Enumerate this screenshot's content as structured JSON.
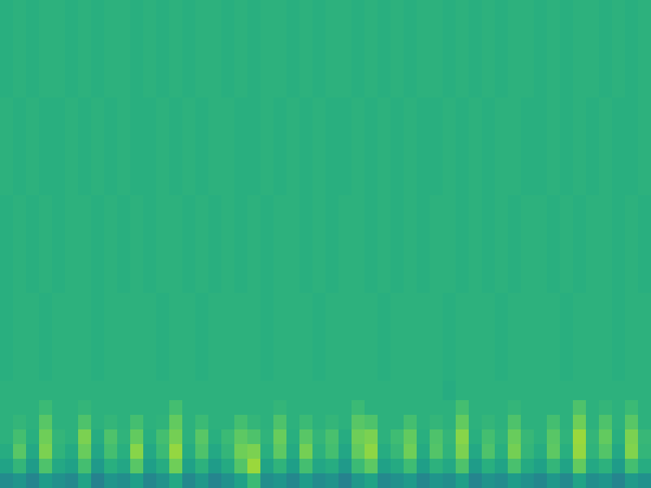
{
  "chart_data": {
    "type": "heatmap",
    "color": "Viridis",
    "tick_labels": false,
    "xlim": [
      -0.5,
      49.5
    ],
    "ylim": [
      0,
      100
    ],
    "zlim": [
      0,
      1
    ],
    "y": [
      0,
      3,
      6,
      9,
      12,
      15,
      18,
      22,
      40,
      60,
      80,
      100
    ],
    "cells": [
      [
        0.48,
        0.52,
        0.45,
        0.55,
        0.5,
        0.47,
        0.58,
        0.44,
        0.52,
        0.49,
        0.56,
        0.46,
        0.51,
        0.6,
        0.47,
        0.53,
        0.45,
        0.5,
        0.57,
        0.68,
        0.49,
        0.52,
        0.46,
        0.55,
        0.48,
        0.51,
        0.44,
        0.53,
        0.58,
        0.47,
        0.5,
        0.54,
        0.46,
        0.52,
        0.49,
        0.56,
        0.45,
        0.51,
        0.48,
        0.55,
        0.5,
        0.46,
        0.53,
        0.47,
        0.58,
        0.49,
        0.52,
        0.45,
        0.54,
        0.5
      ],
      [
        0.58,
        0.66,
        0.55,
        0.72,
        0.6,
        0.57,
        0.7,
        0.54,
        0.63,
        0.59,
        0.74,
        0.56,
        0.62,
        0.78,
        0.57,
        0.64,
        0.55,
        0.61,
        0.73,
        0.85,
        0.58,
        0.65,
        0.56,
        0.7,
        0.59,
        0.62,
        0.54,
        0.68,
        0.75,
        0.57,
        0.61,
        0.69,
        0.56,
        0.64,
        0.6,
        0.72,
        0.55,
        0.63,
        0.58,
        0.71,
        0.61,
        0.57,
        0.66,
        0.58,
        0.76,
        0.6,
        0.64,
        0.55,
        0.7,
        0.62
      ],
      [
        0.62,
        0.74,
        0.6,
        0.8,
        0.65,
        0.61,
        0.77,
        0.59,
        0.7,
        0.63,
        0.82,
        0.6,
        0.68,
        0.84,
        0.62,
        0.72,
        0.6,
        0.66,
        0.78,
        0.8,
        0.63,
        0.75,
        0.61,
        0.79,
        0.64,
        0.7,
        0.59,
        0.76,
        0.83,
        0.62,
        0.67,
        0.78,
        0.61,
        0.73,
        0.65,
        0.8,
        0.6,
        0.72,
        0.63,
        0.79,
        0.66,
        0.62,
        0.75,
        0.63,
        0.84,
        0.65,
        0.73,
        0.6,
        0.81,
        0.66
      ],
      [
        0.64,
        0.7,
        0.63,
        0.78,
        0.66,
        0.64,
        0.8,
        0.62,
        0.72,
        0.65,
        0.76,
        0.63,
        0.7,
        0.79,
        0.64,
        0.74,
        0.63,
        0.68,
        0.75,
        0.72,
        0.65,
        0.77,
        0.63,
        0.74,
        0.66,
        0.71,
        0.62,
        0.78,
        0.8,
        0.64,
        0.69,
        0.76,
        0.63,
        0.72,
        0.66,
        0.82,
        0.63,
        0.7,
        0.65,
        0.77,
        0.67,
        0.64,
        0.74,
        0.65,
        0.85,
        0.66,
        0.76,
        0.63,
        0.8,
        0.67
      ],
      [
        0.64,
        0.66,
        0.64,
        0.74,
        0.64,
        0.64,
        0.72,
        0.64,
        0.66,
        0.64,
        0.7,
        0.64,
        0.65,
        0.76,
        0.64,
        0.68,
        0.64,
        0.64,
        0.7,
        0.66,
        0.64,
        0.72,
        0.64,
        0.68,
        0.64,
        0.66,
        0.64,
        0.74,
        0.72,
        0.64,
        0.64,
        0.7,
        0.64,
        0.66,
        0.64,
        0.76,
        0.64,
        0.66,
        0.64,
        0.72,
        0.64,
        0.64,
        0.7,
        0.64,
        0.78,
        0.64,
        0.72,
        0.64,
        0.74,
        0.64
      ],
      [
        0.64,
        0.64,
        0.64,
        0.68,
        0.64,
        0.64,
        0.66,
        0.64,
        0.64,
        0.64,
        0.64,
        0.64,
        0.64,
        0.7,
        0.64,
        0.64,
        0.64,
        0.64,
        0.64,
        0.64,
        0.64,
        0.66,
        0.64,
        0.64,
        0.64,
        0.64,
        0.64,
        0.68,
        0.64,
        0.64,
        0.64,
        0.64,
        0.64,
        0.64,
        0.64,
        0.7,
        0.64,
        0.64,
        0.64,
        0.66,
        0.64,
        0.64,
        0.64,
        0.64,
        0.72,
        0.64,
        0.66,
        0.64,
        0.68,
        0.64
      ],
      [
        0.64,
        0.64,
        0.64,
        0.64,
        0.64,
        0.64,
        0.64,
        0.64,
        0.64,
        0.64,
        0.64,
        0.64,
        0.64,
        0.64,
        0.64,
        0.64,
        0.64,
        0.64,
        0.64,
        0.64,
        0.64,
        0.64,
        0.64,
        0.64,
        0.64,
        0.64,
        0.64,
        0.64,
        0.64,
        0.64,
        0.64,
        0.64,
        0.64,
        0.64,
        0.62,
        0.64,
        0.64,
        0.64,
        0.64,
        0.64,
        0.64,
        0.64,
        0.64,
        0.64,
        0.64,
        0.64,
        0.64,
        0.64,
        0.64,
        0.64
      ],
      [
        0.63,
        0.64,
        0.64,
        0.63,
        0.64,
        0.64,
        0.64,
        0.63,
        0.64,
        0.64,
        0.64,
        0.64,
        0.63,
        0.64,
        0.64,
        0.63,
        0.64,
        0.64,
        0.64,
        0.64,
        0.63,
        0.64,
        0.64,
        0.64,
        0.63,
        0.64,
        0.64,
        0.64,
        0.64,
        0.63,
        0.64,
        0.64,
        0.64,
        0.64,
        0.63,
        0.64,
        0.64,
        0.64,
        0.63,
        0.64,
        0.64,
        0.64,
        0.64,
        0.63,
        0.64,
        0.64,
        0.64,
        0.63,
        0.64,
        0.64
      ],
      [
        0.63,
        0.64,
        0.63,
        0.64,
        0.63,
        0.64,
        0.64,
        0.63,
        0.64,
        0.63,
        0.64,
        0.63,
        0.64,
        0.64,
        0.63,
        0.64,
        0.63,
        0.64,
        0.63,
        0.64,
        0.63,
        0.64,
        0.64,
        0.63,
        0.64,
        0.63,
        0.64,
        0.64,
        0.63,
        0.64,
        0.63,
        0.64,
        0.63,
        0.64,
        0.64,
        0.63,
        0.64,
        0.63,
        0.64,
        0.63,
        0.64,
        0.64,
        0.63,
        0.64,
        0.63,
        0.64,
        0.64,
        0.63,
        0.64,
        0.63
      ],
      [
        0.64,
        0.63,
        0.64,
        0.63,
        0.63,
        0.64,
        0.63,
        0.64,
        0.63,
        0.64,
        0.63,
        0.63,
        0.64,
        0.63,
        0.64,
        0.63,
        0.64,
        0.64,
        0.63,
        0.63,
        0.64,
        0.63,
        0.64,
        0.63,
        0.64,
        0.63,
        0.63,
        0.64,
        0.63,
        0.64,
        0.63,
        0.64,
        0.63,
        0.63,
        0.64,
        0.63,
        0.64,
        0.63,
        0.64,
        0.64,
        0.63,
        0.63,
        0.64,
        0.63,
        0.64,
        0.63,
        0.64,
        0.63,
        0.63,
        0.64
      ],
      [
        0.63,
        0.64,
        0.63,
        0.64,
        0.64,
        0.63,
        0.64,
        0.63,
        0.64,
        0.64,
        0.63,
        0.64,
        0.63,
        0.64,
        0.63,
        0.64,
        0.64,
        0.63,
        0.64,
        0.63,
        0.64,
        0.64,
        0.63,
        0.64,
        0.63,
        0.64,
        0.64,
        0.63,
        0.64,
        0.63,
        0.64,
        0.63,
        0.64,
        0.64,
        0.63,
        0.64,
        0.63,
        0.64,
        0.63,
        0.64,
        0.64,
        0.63,
        0.64,
        0.63,
        0.64,
        0.64,
        0.63,
        0.64,
        0.63,
        0.64
      ]
    ]
  }
}
